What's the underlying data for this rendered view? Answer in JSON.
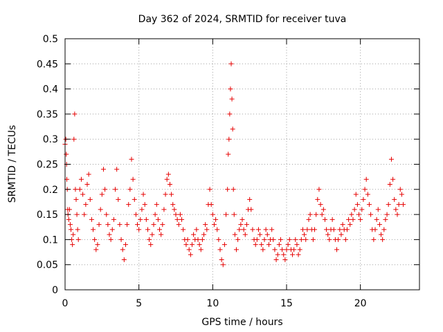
{
  "chart_data": {
    "type": "scatter",
    "title": "Day 362 of 2024, SRMTID for receiver tuva",
    "xlabel": "GPS time / hours",
    "ylabel": "SRMTID / TECUs",
    "xlim": [
      0,
      24
    ],
    "ylim": [
      0,
      0.5
    ],
    "xticks": [
      0,
      5,
      10,
      15,
      20
    ],
    "xtick_labels": [
      "0",
      "5",
      "10",
      "15",
      "20"
    ],
    "yticks": [
      0,
      0.05,
      0.1,
      0.15,
      0.2,
      0.25,
      0.3,
      0.35,
      0.4,
      0.45,
      0.5
    ],
    "ytick_labels": [
      "0",
      "0.05",
      "0.1",
      "0.15",
      "0.2",
      "0.25",
      "0.3",
      "0.35",
      "0.4",
      "0.45",
      "0.5"
    ],
    "grid": true,
    "marker": "plus",
    "color": "#e60000",
    "series": [
      {
        "points": [
          [
            0.0,
            0.29
          ],
          [
            0.05,
            0.3
          ],
          [
            0.08,
            0.27
          ],
          [
            0.1,
            0.25
          ],
          [
            0.12,
            0.22
          ],
          [
            0.15,
            0.2
          ],
          [
            0.18,
            0.16
          ],
          [
            0.2,
            0.15
          ],
          [
            0.25,
            0.14
          ],
          [
            0.3,
            0.16
          ],
          [
            0.35,
            0.13
          ],
          [
            0.4,
            0.12
          ],
          [
            0.45,
            0.1
          ],
          [
            0.5,
            0.09
          ],
          [
            0.55,
            0.11
          ],
          [
            0.6,
            0.3
          ],
          [
            0.65,
            0.35
          ],
          [
            0.7,
            0.2
          ],
          [
            0.75,
            0.18
          ],
          [
            0.8,
            0.15
          ],
          [
            0.85,
            0.12
          ],
          [
            0.9,
            0.1
          ],
          [
            1.0,
            0.2
          ],
          [
            1.1,
            0.22
          ],
          [
            1.2,
            0.19
          ],
          [
            1.3,
            0.15
          ],
          [
            1.4,
            0.17
          ],
          [
            1.5,
            0.21
          ],
          [
            1.6,
            0.23
          ],
          [
            1.7,
            0.18
          ],
          [
            1.8,
            0.14
          ],
          [
            1.9,
            0.12
          ],
          [
            2.0,
            0.1
          ],
          [
            2.1,
            0.08
          ],
          [
            2.2,
            0.09
          ],
          [
            2.3,
            0.13
          ],
          [
            2.4,
            0.16
          ],
          [
            2.5,
            0.19
          ],
          [
            2.6,
            0.24
          ],
          [
            2.7,
            0.2
          ],
          [
            2.8,
            0.15
          ],
          [
            2.9,
            0.13
          ],
          [
            3.0,
            0.11
          ],
          [
            3.1,
            0.1
          ],
          [
            3.2,
            0.12
          ],
          [
            3.3,
            0.14
          ],
          [
            3.4,
            0.2
          ],
          [
            3.5,
            0.24
          ],
          [
            3.6,
            0.18
          ],
          [
            3.7,
            0.13
          ],
          [
            3.8,
            0.1
          ],
          [
            3.9,
            0.08
          ],
          [
            4.0,
            0.06
          ],
          [
            4.1,
            0.09
          ],
          [
            4.2,
            0.13
          ],
          [
            4.3,
            0.17
          ],
          [
            4.4,
            0.2
          ],
          [
            4.5,
            0.26
          ],
          [
            4.6,
            0.22
          ],
          [
            4.7,
            0.18
          ],
          [
            4.8,
            0.15
          ],
          [
            4.9,
            0.13
          ],
          [
            5.0,
            0.12
          ],
          [
            5.1,
            0.14
          ],
          [
            5.2,
            0.16
          ],
          [
            5.3,
            0.19
          ],
          [
            5.4,
            0.17
          ],
          [
            5.5,
            0.14
          ],
          [
            5.6,
            0.12
          ],
          [
            5.7,
            0.1
          ],
          [
            5.8,
            0.09
          ],
          [
            5.9,
            0.11
          ],
          [
            6.0,
            0.13
          ],
          [
            6.1,
            0.15
          ],
          [
            6.2,
            0.17
          ],
          [
            6.3,
            0.14
          ],
          [
            6.4,
            0.12
          ],
          [
            6.5,
            0.11
          ],
          [
            6.6,
            0.13
          ],
          [
            6.7,
            0.16
          ],
          [
            6.8,
            0.19
          ],
          [
            6.9,
            0.22
          ],
          [
            7.0,
            0.23
          ],
          [
            7.1,
            0.21
          ],
          [
            7.2,
            0.19
          ],
          [
            7.3,
            0.17
          ],
          [
            7.4,
            0.16
          ],
          [
            7.5,
            0.15
          ],
          [
            7.6,
            0.14
          ],
          [
            7.7,
            0.13
          ],
          [
            7.8,
            0.15
          ],
          [
            7.9,
            0.14
          ],
          [
            8.0,
            0.12
          ],
          [
            8.1,
            0.1
          ],
          [
            8.2,
            0.09
          ],
          [
            8.3,
            0.1
          ],
          [
            8.4,
            0.08
          ],
          [
            8.5,
            0.07
          ],
          [
            8.6,
            0.09
          ],
          [
            8.7,
            0.11
          ],
          [
            8.8,
            0.1
          ],
          [
            8.9,
            0.12
          ],
          [
            9.0,
            0.1
          ],
          [
            9.1,
            0.09
          ],
          [
            9.2,
            0.08
          ],
          [
            9.3,
            0.1
          ],
          [
            9.4,
            0.11
          ],
          [
            9.5,
            0.13
          ],
          [
            9.6,
            0.12
          ],
          [
            9.7,
            0.17
          ],
          [
            9.8,
            0.2
          ],
          [
            9.9,
            0.17
          ],
          [
            10.0,
            0.15
          ],
          [
            10.1,
            0.13
          ],
          [
            10.2,
            0.14
          ],
          [
            10.3,
            0.12
          ],
          [
            10.4,
            0.1
          ],
          [
            10.5,
            0.08
          ],
          [
            10.6,
            0.06
          ],
          [
            10.7,
            0.05
          ],
          [
            10.8,
            0.09
          ],
          [
            10.9,
            0.15
          ],
          [
            11.0,
            0.2
          ],
          [
            11.05,
            0.27
          ],
          [
            11.1,
            0.3
          ],
          [
            11.15,
            0.35
          ],
          [
            11.2,
            0.4
          ],
          [
            11.25,
            0.45
          ],
          [
            11.3,
            0.38
          ],
          [
            11.35,
            0.32
          ],
          [
            11.4,
            0.2
          ],
          [
            11.45,
            0.15
          ],
          [
            11.5,
            0.11
          ],
          [
            11.6,
            0.08
          ],
          [
            11.7,
            0.1
          ],
          [
            11.8,
            0.12
          ],
          [
            11.9,
            0.13
          ],
          [
            12.0,
            0.14
          ],
          [
            12.1,
            0.12
          ],
          [
            12.2,
            0.11
          ],
          [
            12.3,
            0.13
          ],
          [
            12.4,
            0.16
          ],
          [
            12.5,
            0.18
          ],
          [
            12.6,
            0.16
          ],
          [
            12.7,
            0.12
          ],
          [
            12.8,
            0.1
          ],
          [
            12.9,
            0.09
          ],
          [
            13.0,
            0.1
          ],
          [
            13.1,
            0.12
          ],
          [
            13.2,
            0.11
          ],
          [
            13.3,
            0.09
          ],
          [
            13.4,
            0.08
          ],
          [
            13.5,
            0.1
          ],
          [
            13.6,
            0.12
          ],
          [
            13.7,
            0.11
          ],
          [
            13.8,
            0.09
          ],
          [
            13.9,
            0.1
          ],
          [
            14.0,
            0.12
          ],
          [
            14.1,
            0.1
          ],
          [
            14.2,
            0.08
          ],
          [
            14.3,
            0.06
          ],
          [
            14.4,
            0.07
          ],
          [
            14.5,
            0.09
          ],
          [
            14.6,
            0.1
          ],
          [
            14.7,
            0.08
          ],
          [
            14.8,
            0.07
          ],
          [
            14.9,
            0.06
          ],
          [
            15.0,
            0.08
          ],
          [
            15.1,
            0.09
          ],
          [
            15.2,
            0.1
          ],
          [
            15.3,
            0.08
          ],
          [
            15.4,
            0.07
          ],
          [
            15.5,
            0.08
          ],
          [
            15.6,
            0.1
          ],
          [
            15.7,
            0.09
          ],
          [
            15.8,
            0.07
          ],
          [
            15.9,
            0.08
          ],
          [
            16.0,
            0.1
          ],
          [
            16.1,
            0.12
          ],
          [
            16.2,
            0.11
          ],
          [
            16.3,
            0.1
          ],
          [
            16.4,
            0.12
          ],
          [
            16.5,
            0.14
          ],
          [
            16.6,
            0.15
          ],
          [
            16.7,
            0.12
          ],
          [
            16.8,
            0.1
          ],
          [
            16.9,
            0.12
          ],
          [
            17.0,
            0.15
          ],
          [
            17.1,
            0.18
          ],
          [
            17.2,
            0.2
          ],
          [
            17.3,
            0.17
          ],
          [
            17.4,
            0.15
          ],
          [
            17.5,
            0.16
          ],
          [
            17.6,
            0.14
          ],
          [
            17.7,
            0.12
          ],
          [
            17.8,
            0.11
          ],
          [
            17.9,
            0.1
          ],
          [
            18.0,
            0.12
          ],
          [
            18.1,
            0.14
          ],
          [
            18.2,
            0.12
          ],
          [
            18.3,
            0.1
          ],
          [
            18.4,
            0.08
          ],
          [
            18.5,
            0.1
          ],
          [
            18.6,
            0.12
          ],
          [
            18.7,
            0.11
          ],
          [
            18.8,
            0.13
          ],
          [
            18.9,
            0.12
          ],
          [
            19.0,
            0.1
          ],
          [
            19.1,
            0.12
          ],
          [
            19.2,
            0.14
          ],
          [
            19.3,
            0.13
          ],
          [
            19.4,
            0.15
          ],
          [
            19.5,
            0.14
          ],
          [
            19.6,
            0.16
          ],
          [
            19.7,
            0.19
          ],
          [
            19.8,
            0.17
          ],
          [
            19.9,
            0.15
          ],
          [
            20.0,
            0.14
          ],
          [
            20.1,
            0.16
          ],
          [
            20.2,
            0.18
          ],
          [
            20.3,
            0.2
          ],
          [
            20.4,
            0.22
          ],
          [
            20.5,
            0.19
          ],
          [
            20.6,
            0.17
          ],
          [
            20.7,
            0.15
          ],
          [
            20.8,
            0.12
          ],
          [
            20.9,
            0.1
          ],
          [
            21.0,
            0.12
          ],
          [
            21.1,
            0.14
          ],
          [
            21.2,
            0.16
          ],
          [
            21.3,
            0.13
          ],
          [
            21.4,
            0.11
          ],
          [
            21.5,
            0.1
          ],
          [
            21.6,
            0.12
          ],
          [
            21.7,
            0.14
          ],
          [
            21.8,
            0.15
          ],
          [
            21.9,
            0.17
          ],
          [
            22.0,
            0.21
          ],
          [
            22.1,
            0.26
          ],
          [
            22.2,
            0.22
          ],
          [
            22.3,
            0.18
          ],
          [
            22.4,
            0.16
          ],
          [
            22.5,
            0.15
          ],
          [
            22.6,
            0.17
          ],
          [
            22.7,
            0.2
          ],
          [
            22.8,
            0.19
          ],
          [
            22.9,
            0.17
          ]
        ]
      }
    ]
  }
}
